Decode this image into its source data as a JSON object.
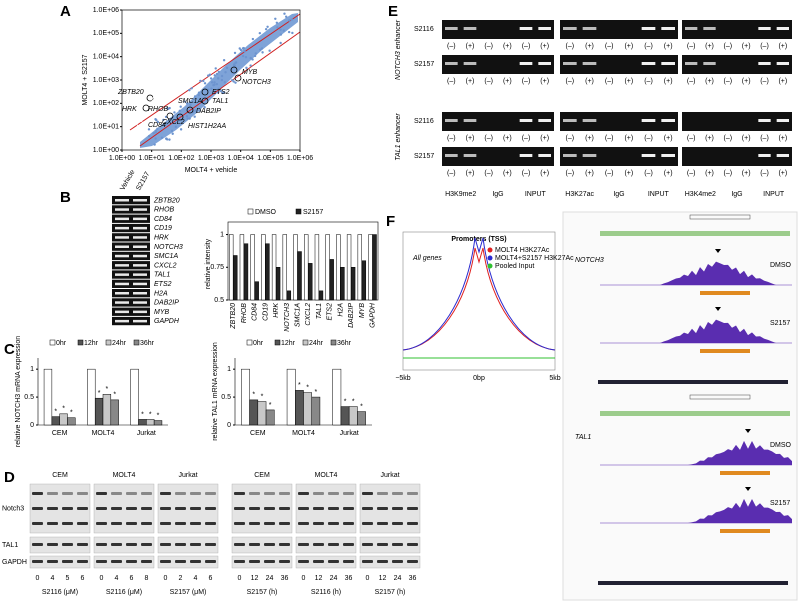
{
  "A": {
    "label": "A",
    "x_label": "MOLT4 + vehicle",
    "y_label": "MOLT4 + S2157",
    "xticks": [
      {
        "value": 1,
        "label": "1.0E+00"
      },
      {
        "value": 10,
        "label": "1.0E+01"
      },
      {
        "value": 100,
        "label": "1.0E+02"
      },
      {
        "value": 1000,
        "label": "1.0E+03"
      },
      {
        "value": 10000,
        "label": "1.0E+04"
      },
      {
        "value": 100000,
        "label": "1.0E+05"
      },
      {
        "value": 1000000,
        "label": "1.0E+06"
      }
    ],
    "yticks": [
      {
        "value": 1,
        "label": "1.0E+00"
      },
      {
        "value": 10,
        "label": "1.0E+01"
      },
      {
        "value": 100,
        "label": "1.0E+02"
      },
      {
        "value": 1000,
        "label": "1.0E+03"
      },
      {
        "value": 10000,
        "label": "1.0E+04"
      },
      {
        "value": 100000,
        "label": "1.0E+05"
      },
      {
        "value": 1000000,
        "label": "1.0E+06"
      }
    ],
    "genes": [
      "MYB",
      "NOTCH3",
      "ETS2",
      "TAL1",
      "DAB2IP",
      "HIST1H2AA",
      "ZBTB20",
      "HRK",
      "RHOB",
      "SMC1A",
      "CD84",
      "CXCL2"
    ]
  },
  "B": {
    "label": "B",
    "lanes": [
      "Vehicle",
      "S2157"
    ],
    "genes": [
      "ZBTB20",
      "RHOB",
      "CD84",
      "CD19",
      "HRK",
      "NOTCH3",
      "SMC1A",
      "CXCL2",
      "TAL1",
      "ETS2",
      "H2A",
      "DAB2IP",
      "MYB",
      "GAPDH"
    ],
    "chart": {
      "type": "bar",
      "y_label": "relative intensity",
      "categories": [
        "ZBTB20",
        "RHOB",
        "CD84",
        "CD19",
        "HRK",
        "NOTCH3",
        "SMC1A",
        "CXCL2",
        "TAL1",
        "ETS2",
        "H2A",
        "DAB2IP",
        "MYB",
        "GAPDH"
      ],
      "ylim": [
        0.5,
        1.05
      ],
      "yticks": [
        0.5,
        0.75,
        1
      ],
      "series": [
        {
          "name": "DMSO",
          "color": "#ffffff",
          "values": [
            1,
            1,
            1,
            1,
            1,
            1,
            1,
            1,
            1,
            1,
            1,
            1,
            1,
            1
          ]
        },
        {
          "name": "S2157",
          "color": "#222222",
          "values": [
            0.84,
            0.93,
            0.64,
            0.93,
            0.75,
            0.57,
            0.87,
            0.78,
            0.57,
            0.81,
            0.75,
            0.75,
            0.8,
            1.0
          ]
        }
      ]
    }
  },
  "C": {
    "label": "C",
    "significance": "*",
    "charts": [
      {
        "type": "bar",
        "y_label": "relative NOTCH3 mRNA expression",
        "categories": [
          "CEM",
          "MOLT4",
          "Jurkat"
        ],
        "ylim": [
          0,
          1.2
        ],
        "yticks": [
          0,
          0.5,
          1
        ],
        "series": [
          {
            "name": "0hr",
            "color": "#ffffff",
            "values": [
              1,
              1,
              1
            ]
          },
          {
            "name": "12hr",
            "color": "#555555",
            "values": [
              0.15,
              0.48,
              0.1
            ]
          },
          {
            "name": "24hr",
            "color": "#c8c8c8",
            "values": [
              0.2,
              0.55,
              0.1
            ]
          },
          {
            "name": "36hr",
            "color": "#888888",
            "values": [
              0.13,
              0.45,
              0.08
            ]
          }
        ]
      },
      {
        "type": "bar",
        "y_label": "relative TAL1 mRNA expression",
        "categories": [
          "CEM",
          "MOLT4",
          "Jurkat"
        ],
        "ylim": [
          0,
          1.2
        ],
        "yticks": [
          0,
          0.5,
          1
        ],
        "series": [
          {
            "name": "0hr",
            "color": "#ffffff",
            "values": [
              1,
              1,
              1
            ]
          },
          {
            "name": "12hr",
            "color": "#555555",
            "values": [
              0.45,
              0.62,
              0.33
            ]
          },
          {
            "name": "24hr",
            "color": "#c8c8c8",
            "values": [
              0.42,
              0.58,
              0.33
            ]
          },
          {
            "name": "36hr",
            "color": "#888888",
            "values": [
              0.27,
              0.5,
              0.24
            ]
          }
        ]
      }
    ]
  },
  "D": {
    "label": "D",
    "rows": [
      "Notch3",
      "TAL1",
      "GAPDH"
    ],
    "groups": [
      {
        "cell": "CEM",
        "lanes": [
          0,
          4,
          5,
          6
        ],
        "unit": "S2116 (μM)"
      },
      {
        "cell": "MOLT4",
        "lanes": [
          0,
          4,
          6,
          8
        ],
        "unit": "S2116 (μM)"
      },
      {
        "cell": "Jurkat",
        "lanes": [
          0,
          2,
          4,
          6
        ],
        "unit": "S2157 (μM)"
      },
      {
        "cell": "CEM",
        "lanes": [
          0,
          12,
          24,
          36
        ],
        "unit": "S2157 (h)"
      },
      {
        "cell": "MOLT4",
        "lanes": [
          0,
          12,
          24,
          36
        ],
        "unit": "S2116 (h)"
      },
      {
        "cell": "Jurkat",
        "lanes": [
          0,
          12,
          24,
          36
        ],
        "unit": "S2157 (h)"
      }
    ]
  },
  "E": {
    "label": "E",
    "sections": [
      {
        "name": "NOTCH3 enhancer",
        "rows": [
          "S2116",
          "S2157"
        ]
      },
      {
        "name": "TAL1 enhancer",
        "rows": [
          "S2116",
          "S2157"
        ]
      }
    ],
    "lane_labels": [
      "(–)",
      "(+)"
    ],
    "columns": [
      "H3K9me2",
      "IgG",
      "INPUT",
      "H3K27ac",
      "IgG",
      "INPUT",
      "H3K4me2",
      "IgG",
      "INPUT"
    ]
  },
  "F": {
    "label": "F",
    "profile": {
      "title": "Promoters (TSS)",
      "subtitle": "All genes",
      "legend": [
        {
          "name": "MOLT4 H3K27Ac",
          "color": "#e02020"
        },
        {
          "name": "MOLT4+S2157 H3K27Ac",
          "color": "#2a2ad0"
        },
        {
          "name": "Pooled Input",
          "color": "#30c030"
        }
      ],
      "xticks": [
        "−5kb",
        "0bp",
        "5kb"
      ]
    },
    "tracks": [
      {
        "gene": "NOTCH3",
        "conditions": [
          "DMSO",
          "S2157"
        ]
      },
      {
        "gene": "TAL1",
        "conditions": [
          "DMSO",
          "S2157"
        ]
      }
    ]
  }
}
